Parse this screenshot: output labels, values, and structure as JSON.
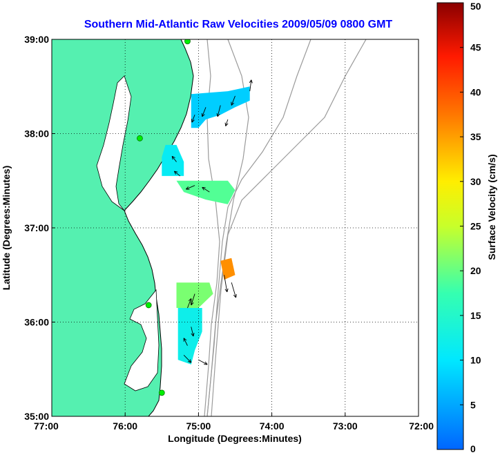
{
  "title": "Southern Mid-Atlantic Raw Velocities 2009/05/09 0800 GMT",
  "title_color": "#0000ff",
  "xlabel": "Longitude (Degrees:Minutes)",
  "ylabel": "Latitude (Degrees:Minutes)",
  "colorbar_label": "Surface Velocity (cm/s)",
  "x_ticks": [
    "77:00",
    "76:00",
    "75:00",
    "74:00",
    "73:00",
    "72:00"
  ],
  "y_ticks": [
    "39:00",
    "38:00",
    "37:00",
    "36:00",
    "35:00"
  ],
  "colorbar_ticks": [
    "0",
    "5",
    "10",
    "15",
    "20",
    "25",
    "30",
    "35",
    "40",
    "45",
    "50"
  ],
  "colors": {
    "land": "#55f0b0",
    "water": "#ffffff",
    "coast": "#000000",
    "bathymetry": "#9a9a9a",
    "grid": "#000000",
    "station": "#00ee00"
  },
  "chart_data": {
    "type": "map",
    "xlim": [
      -77,
      -72
    ],
    "ylim": [
      35,
      39
    ],
    "colorbar_range": [
      0,
      50
    ],
    "grid": true,
    "stations": [
      {
        "lon": -75.15,
        "lat": 38.98
      },
      {
        "lon": -75.8,
        "lat": 37.95
      },
      {
        "lon": -75.68,
        "lat": 36.18
      },
      {
        "lon": -75.5,
        "lat": 35.25
      }
    ],
    "velocity_regions": [
      {
        "name_hint": "delmarva-north",
        "speed": 8,
        "poly": [
          [
            -75.1,
            38.42
          ],
          [
            -74.6,
            38.45
          ],
          [
            -74.3,
            38.5
          ],
          [
            -74.3,
            38.35
          ],
          [
            -74.5,
            38.28
          ],
          [
            -74.7,
            38.2
          ],
          [
            -74.9,
            38.15
          ],
          [
            -75.0,
            38.06
          ],
          [
            -75.1,
            38.06
          ]
        ]
      },
      {
        "name_hint": "chesapeake-mouth-west",
        "speed": 11,
        "poly": [
          [
            -75.45,
            37.88
          ],
          [
            -75.3,
            37.88
          ],
          [
            -75.2,
            37.7
          ],
          [
            -75.2,
            37.55
          ],
          [
            -75.5,
            37.55
          ],
          [
            -75.5,
            37.75
          ]
        ]
      },
      {
        "name_hint": "chesapeake-mouth-east",
        "speed": 19,
        "poly": [
          [
            -75.3,
            37.5
          ],
          [
            -74.6,
            37.5
          ],
          [
            -74.5,
            37.4
          ],
          [
            -74.6,
            37.25
          ],
          [
            -74.9,
            37.3
          ],
          [
            -75.2,
            37.38
          ]
        ]
      },
      {
        "name_hint": "hatteras-offshore",
        "speed": 36,
        "poly": [
          [
            -74.7,
            36.65
          ],
          [
            -74.55,
            36.68
          ],
          [
            -74.5,
            36.5
          ],
          [
            -74.65,
            36.45
          ]
        ]
      },
      {
        "name_hint": "outer-banks-north",
        "speed": 21,
        "poly": [
          [
            -75.3,
            36.42
          ],
          [
            -74.85,
            36.42
          ],
          [
            -74.8,
            36.3
          ],
          [
            -75.0,
            36.15
          ],
          [
            -75.3,
            36.15
          ]
        ]
      },
      {
        "name_hint": "outer-banks-south",
        "speed": 12,
        "poly": [
          [
            -75.28,
            36.15
          ],
          [
            -74.95,
            36.15
          ],
          [
            -74.95,
            35.9
          ],
          [
            -75.05,
            35.7
          ],
          [
            -75.1,
            35.55
          ],
          [
            -75.28,
            35.6
          ]
        ]
      }
    ],
    "arrows": [
      {
        "lon": -74.9,
        "lat": 38.28,
        "u": -0.05,
        "v": -0.1
      },
      {
        "lon": -74.7,
        "lat": 38.3,
        "u": -0.04,
        "v": -0.12
      },
      {
        "lon": -74.5,
        "lat": 38.4,
        "u": -0.05,
        "v": -0.1
      },
      {
        "lon": -74.3,
        "lat": 38.45,
        "u": 0.02,
        "v": 0.12
      },
      {
        "lon": -75.05,
        "lat": 38.2,
        "u": -0.04,
        "v": -0.08
      },
      {
        "lon": -74.6,
        "lat": 38.15,
        "u": -0.03,
        "v": -0.07
      },
      {
        "lon": -75.3,
        "lat": 37.7,
        "u": -0.06,
        "v": 0.06
      },
      {
        "lon": -75.25,
        "lat": 37.55,
        "u": -0.08,
        "v": 0.05
      },
      {
        "lon": -75.05,
        "lat": 37.45,
        "u": -0.12,
        "v": -0.04
      },
      {
        "lon": -74.85,
        "lat": 37.38,
        "u": -0.1,
        "v": 0.05
      },
      {
        "lon": -74.65,
        "lat": 36.5,
        "u": 0.04,
        "v": -0.18
      },
      {
        "lon": -74.55,
        "lat": 36.42,
        "u": 0.06,
        "v": -0.16
      },
      {
        "lon": -75.05,
        "lat": 36.3,
        "u": -0.05,
        "v": -0.12
      },
      {
        "lon": -75.15,
        "lat": 36.15,
        "u": 0.05,
        "v": 0.1
      },
      {
        "lon": -75.1,
        "lat": 35.95,
        "u": 0.03,
        "v": -0.1
      },
      {
        "lon": -75.15,
        "lat": 35.75,
        "u": -0.05,
        "v": 0.08
      },
      {
        "lon": -75.0,
        "lat": 35.6,
        "u": 0.12,
        "v": -0.05
      },
      {
        "lon": -75.2,
        "lat": 35.65,
        "u": 0.1,
        "v": -0.08
      }
    ]
  }
}
